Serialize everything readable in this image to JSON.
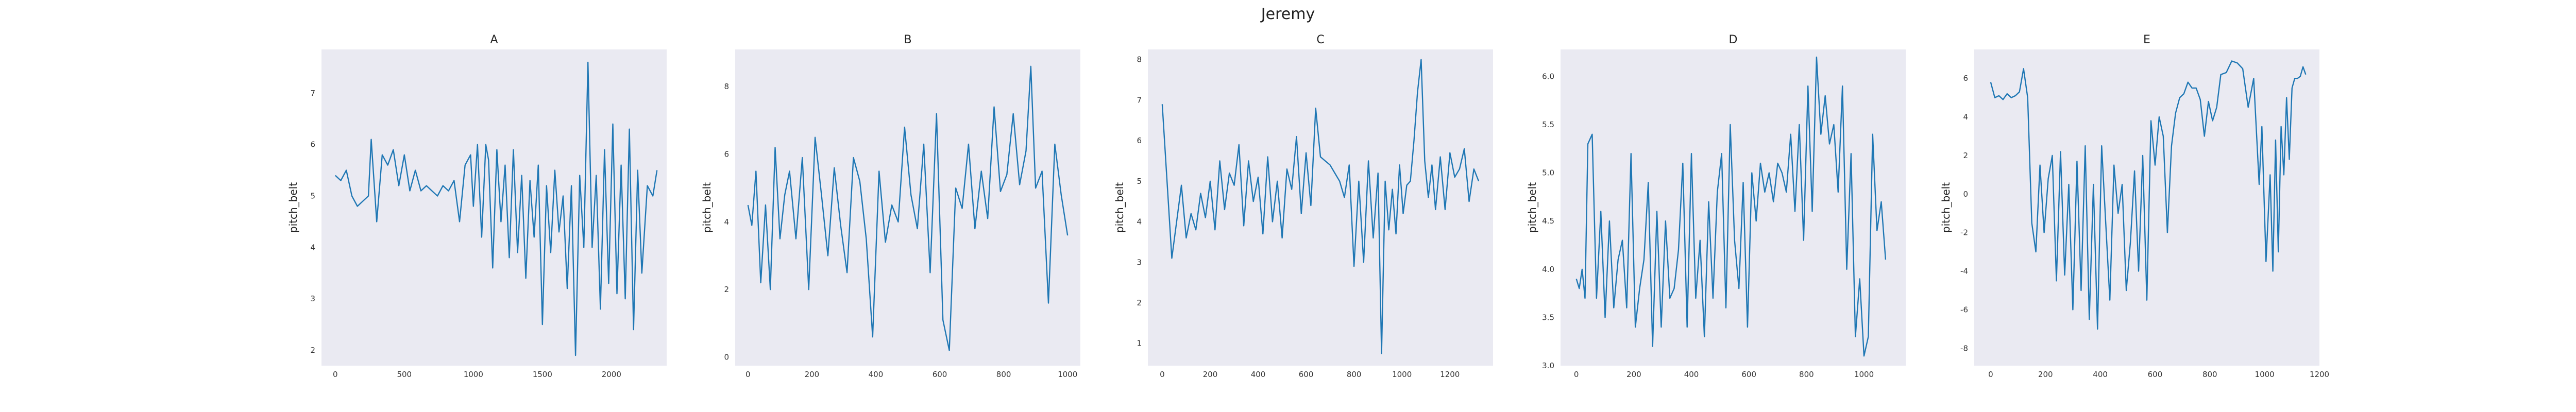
{
  "figure_title": "Jeremy",
  "colors": {
    "line": "#1f77b4",
    "plot_background": "#eaeaf2"
  },
  "chart_data": [
    {
      "type": "line",
      "title": "A",
      "xlabel": "",
      "ylabel": "pitch_belt",
      "xlim": [
        -100,
        2400
      ],
      "ylim": [
        1.7,
        7.85
      ],
      "grid": false,
      "xticks": [
        0,
        500,
        1000,
        1500,
        2000
      ],
      "yticks": [
        2,
        3,
        4,
        5,
        6,
        7
      ],
      "series": [
        {
          "x": [
            0,
            40,
            80,
            120,
            160,
            200,
            240,
            260,
            300,
            340,
            380,
            420,
            460,
            500,
            540,
            580,
            620,
            660,
            700,
            740,
            780,
            820,
            860,
            900,
            940,
            980,
            1000,
            1030,
            1060,
            1090,
            1110,
            1140,
            1170,
            1200,
            1230,
            1260,
            1290,
            1320,
            1350,
            1380,
            1410,
            1440,
            1470,
            1500,
            1530,
            1560,
            1590,
            1620,
            1650,
            1680,
            1710,
            1740,
            1770,
            1800,
            1830,
            1860,
            1890,
            1920,
            1950,
            1980,
            2010,
            2040,
            2070,
            2100,
            2130,
            2160,
            2190,
            2220,
            2260,
            2300,
            2330
          ],
          "y": [
            5.4,
            5.3,
            5.5,
            5.0,
            4.8,
            4.9,
            5.0,
            6.1,
            4.5,
            5.8,
            5.6,
            5.9,
            5.2,
            5.8,
            5.1,
            5.5,
            5.1,
            5.2,
            5.1,
            5.0,
            5.2,
            5.1,
            5.3,
            4.5,
            5.6,
            5.8,
            4.8,
            6.0,
            4.2,
            6.0,
            5.7,
            3.6,
            5.9,
            4.5,
            5.6,
            3.8,
            5.9,
            3.9,
            5.4,
            3.4,
            5.3,
            4.2,
            5.6,
            2.5,
            5.2,
            3.9,
            5.5,
            4.3,
            5.0,
            3.2,
            5.2,
            1.9,
            5.4,
            4.0,
            7.6,
            4.0,
            5.4,
            2.8,
            5.9,
            3.3,
            6.4,
            3.1,
            5.6,
            3.0,
            6.3,
            2.4,
            5.5,
            3.5,
            5.2,
            5.0,
            5.5
          ]
        }
      ]
    },
    {
      "type": "line",
      "title": "B",
      "xlabel": "",
      "ylabel": "pitch_belt",
      "xlim": [
        -40,
        1040
      ],
      "ylim": [
        -0.25,
        9.1
      ],
      "grid": false,
      "xticks": [
        0,
        200,
        400,
        600,
        800,
        1000
      ],
      "yticks": [
        0,
        2,
        4,
        6,
        8
      ],
      "series": [
        {
          "x": [
            0,
            12,
            25,
            40,
            55,
            70,
            85,
            100,
            115,
            130,
            150,
            170,
            190,
            210,
            230,
            250,
            270,
            290,
            310,
            330,
            350,
            370,
            390,
            410,
            430,
            450,
            470,
            490,
            510,
            530,
            550,
            570,
            590,
            610,
            630,
            650,
            670,
            690,
            710,
            730,
            750,
            770,
            790,
            810,
            830,
            850,
            870,
            885,
            900,
            920,
            940,
            960,
            980,
            1000
          ],
          "y": [
            4.5,
            3.9,
            5.5,
            2.2,
            4.5,
            2.0,
            6.2,
            3.5,
            4.8,
            5.5,
            3.5,
            5.9,
            2.0,
            6.5,
            4.8,
            3.0,
            5.6,
            3.9,
            2.5,
            5.9,
            5.2,
            3.5,
            0.6,
            5.5,
            3.4,
            4.5,
            4.0,
            6.8,
            4.8,
            3.8,
            6.3,
            2.5,
            7.2,
            1.1,
            0.2,
            5.0,
            4.4,
            6.3,
            3.8,
            5.5,
            4.1,
            7.4,
            4.9,
            5.4,
            7.2,
            5.1,
            6.1,
            8.6,
            5.0,
            5.5,
            1.6,
            6.3,
            4.8,
            3.6
          ]
        }
      ]
    },
    {
      "type": "line",
      "title": "C",
      "xlabel": "",
      "ylabel": "pitch_belt",
      "xlim": [
        -60,
        1380
      ],
      "ylim": [
        0.45,
        8.25
      ],
      "grid": false,
      "xticks": [
        0,
        200,
        400,
        600,
        800,
        1000,
        1200
      ],
      "yticks": [
        1,
        2,
        3,
        4,
        5,
        6,
        7,
        8
      ],
      "series": [
        {
          "x": [
            0,
            20,
            40,
            60,
            80,
            100,
            120,
            140,
            160,
            180,
            200,
            220,
            240,
            260,
            280,
            300,
            320,
            340,
            360,
            380,
            400,
            420,
            440,
            460,
            480,
            500,
            520,
            540,
            560,
            580,
            600,
            620,
            640,
            660,
            680,
            700,
            720,
            740,
            760,
            780,
            800,
            820,
            840,
            860,
            880,
            900,
            915,
            930,
            945,
            960,
            975,
            990,
            1005,
            1020,
            1035,
            1050,
            1065,
            1080,
            1095,
            1110,
            1125,
            1140,
            1160,
            1180,
            1200,
            1220,
            1240,
            1260,
            1280,
            1300,
            1320
          ],
          "y": [
            6.9,
            5.0,
            3.1,
            4.0,
            4.9,
            3.6,
            4.2,
            3.8,
            4.7,
            4.1,
            5.0,
            3.8,
            5.5,
            4.3,
            5.2,
            4.9,
            5.9,
            3.9,
            5.5,
            4.5,
            5.1,
            3.7,
            5.6,
            4.0,
            5.0,
            3.6,
            5.3,
            4.8,
            6.1,
            4.2,
            5.7,
            4.4,
            6.8,
            5.6,
            5.5,
            5.4,
            5.2,
            5.0,
            4.6,
            5.4,
            2.9,
            5.0,
            3.0,
            5.5,
            3.6,
            5.2,
            0.75,
            5.0,
            3.8,
            4.8,
            3.7,
            5.4,
            4.2,
            4.9,
            5.0,
            6.0,
            7.2,
            8.0,
            5.5,
            4.6,
            5.4,
            4.3,
            5.6,
            4.3,
            5.7,
            5.1,
            5.3,
            5.8,
            4.5,
            5.3,
            5.0
          ]
        }
      ]
    },
    {
      "type": "line",
      "title": "D",
      "xlabel": "",
      "ylabel": "pitch_belt",
      "xlim": [
        -55,
        1145
      ],
      "ylim": [
        3.0,
        6.28
      ],
      "grid": false,
      "xticks": [
        0,
        200,
        400,
        600,
        800,
        1000
      ],
      "yticks": [
        3.0,
        3.5,
        4.0,
        4.5,
        5.0,
        5.5,
        6.0
      ],
      "series": [
        {
          "x": [
            0,
            10,
            20,
            30,
            40,
            55,
            70,
            85,
            100,
            115,
            130,
            145,
            160,
            175,
            190,
            205,
            220,
            235,
            250,
            265,
            280,
            295,
            310,
            325,
            340,
            355,
            370,
            385,
            400,
            415,
            430,
            445,
            460,
            475,
            490,
            505,
            520,
            535,
            550,
            565,
            580,
            595,
            610,
            625,
            640,
            655,
            670,
            685,
            700,
            715,
            730,
            745,
            760,
            775,
            790,
            805,
            820,
            835,
            850,
            865,
            880,
            895,
            910,
            925,
            940,
            955,
            970,
            985,
            1000,
            1015,
            1030,
            1045,
            1060,
            1075
          ],
          "y": [
            3.9,
            3.8,
            4.0,
            3.7,
            5.3,
            5.4,
            3.7,
            4.6,
            3.5,
            4.5,
            3.6,
            4.1,
            4.3,
            3.6,
            5.2,
            3.4,
            3.8,
            4.1,
            4.9,
            3.2,
            4.6,
            3.4,
            4.5,
            3.7,
            3.8,
            4.2,
            5.1,
            3.4,
            5.2,
            3.7,
            4.3,
            3.3,
            4.7,
            3.7,
            4.8,
            5.2,
            3.6,
            5.5,
            4.3,
            3.8,
            4.9,
            3.4,
            5.0,
            4.5,
            5.1,
            4.8,
            5.0,
            4.7,
            5.1,
            5.0,
            4.8,
            5.4,
            4.6,
            5.5,
            4.3,
            5.9,
            4.6,
            6.2,
            5.4,
            5.8,
            5.3,
            5.5,
            4.8,
            5.9,
            4.0,
            5.2,
            3.3,
            3.9,
            3.1,
            3.3,
            5.4,
            4.4,
            4.7,
            4.1
          ]
        }
      ]
    },
    {
      "type": "line",
      "title": "E",
      "xlabel": "",
      "ylabel": "pitch_belt",
      "xlim": [
        -60,
        1200
      ],
      "ylim": [
        -8.9,
        7.5
      ],
      "grid": false,
      "xticks": [
        0,
        200,
        400,
        600,
        800,
        1000,
        1200
      ],
      "yticks": [
        -8,
        -6,
        -4,
        -2,
        0,
        2,
        4,
        6
      ],
      "series": [
        {
          "x": [
            0,
            15,
            30,
            45,
            60,
            75,
            90,
            105,
            120,
            135,
            150,
            165,
            180,
            195,
            210,
            225,
            240,
            255,
            270,
            285,
            300,
            315,
            330,
            345,
            360,
            375,
            390,
            405,
            420,
            435,
            450,
            465,
            480,
            495,
            510,
            525,
            540,
            555,
            570,
            585,
            600,
            615,
            630,
            645,
            660,
            675,
            690,
            705,
            720,
            735,
            750,
            765,
            780,
            795,
            810,
            825,
            840,
            860,
            880,
            900,
            920,
            940,
            960,
            980,
            990,
            1005,
            1020,
            1030,
            1040,
            1050,
            1060,
            1070,
            1080,
            1090,
            1100,
            1110,
            1120,
            1130,
            1140,
            1150
          ],
          "y": [
            5.8,
            5.0,
            5.1,
            4.9,
            5.2,
            5.0,
            5.1,
            5.3,
            6.5,
            5.0,
            -1.5,
            -3.0,
            1.5,
            -2.0,
            0.8,
            2.0,
            -4.5,
            2.2,
            -4.2,
            0.5,
            -6.0,
            1.7,
            -5.0,
            2.5,
            -6.5,
            0.5,
            -7.0,
            2.5,
            -1.5,
            -5.5,
            1.5,
            -1.0,
            0.5,
            -5.0,
            -2.5,
            1.2,
            -4.0,
            2.0,
            -5.5,
            3.8,
            1.5,
            4.0,
            3.0,
            -2.0,
            2.5,
            4.2,
            5.0,
            5.2,
            5.8,
            5.5,
            5.5,
            4.9,
            3.0,
            4.8,
            3.8,
            4.5,
            6.2,
            6.3,
            6.9,
            6.8,
            6.5,
            4.5,
            6.0,
            0.5,
            3.5,
            -3.5,
            1.0,
            -4.0,
            2.8,
            -3.0,
            3.5,
            1.0,
            5.0,
            1.8,
            5.5,
            6.0,
            6.0,
            6.1,
            6.6,
            6.2
          ]
        }
      ]
    }
  ]
}
